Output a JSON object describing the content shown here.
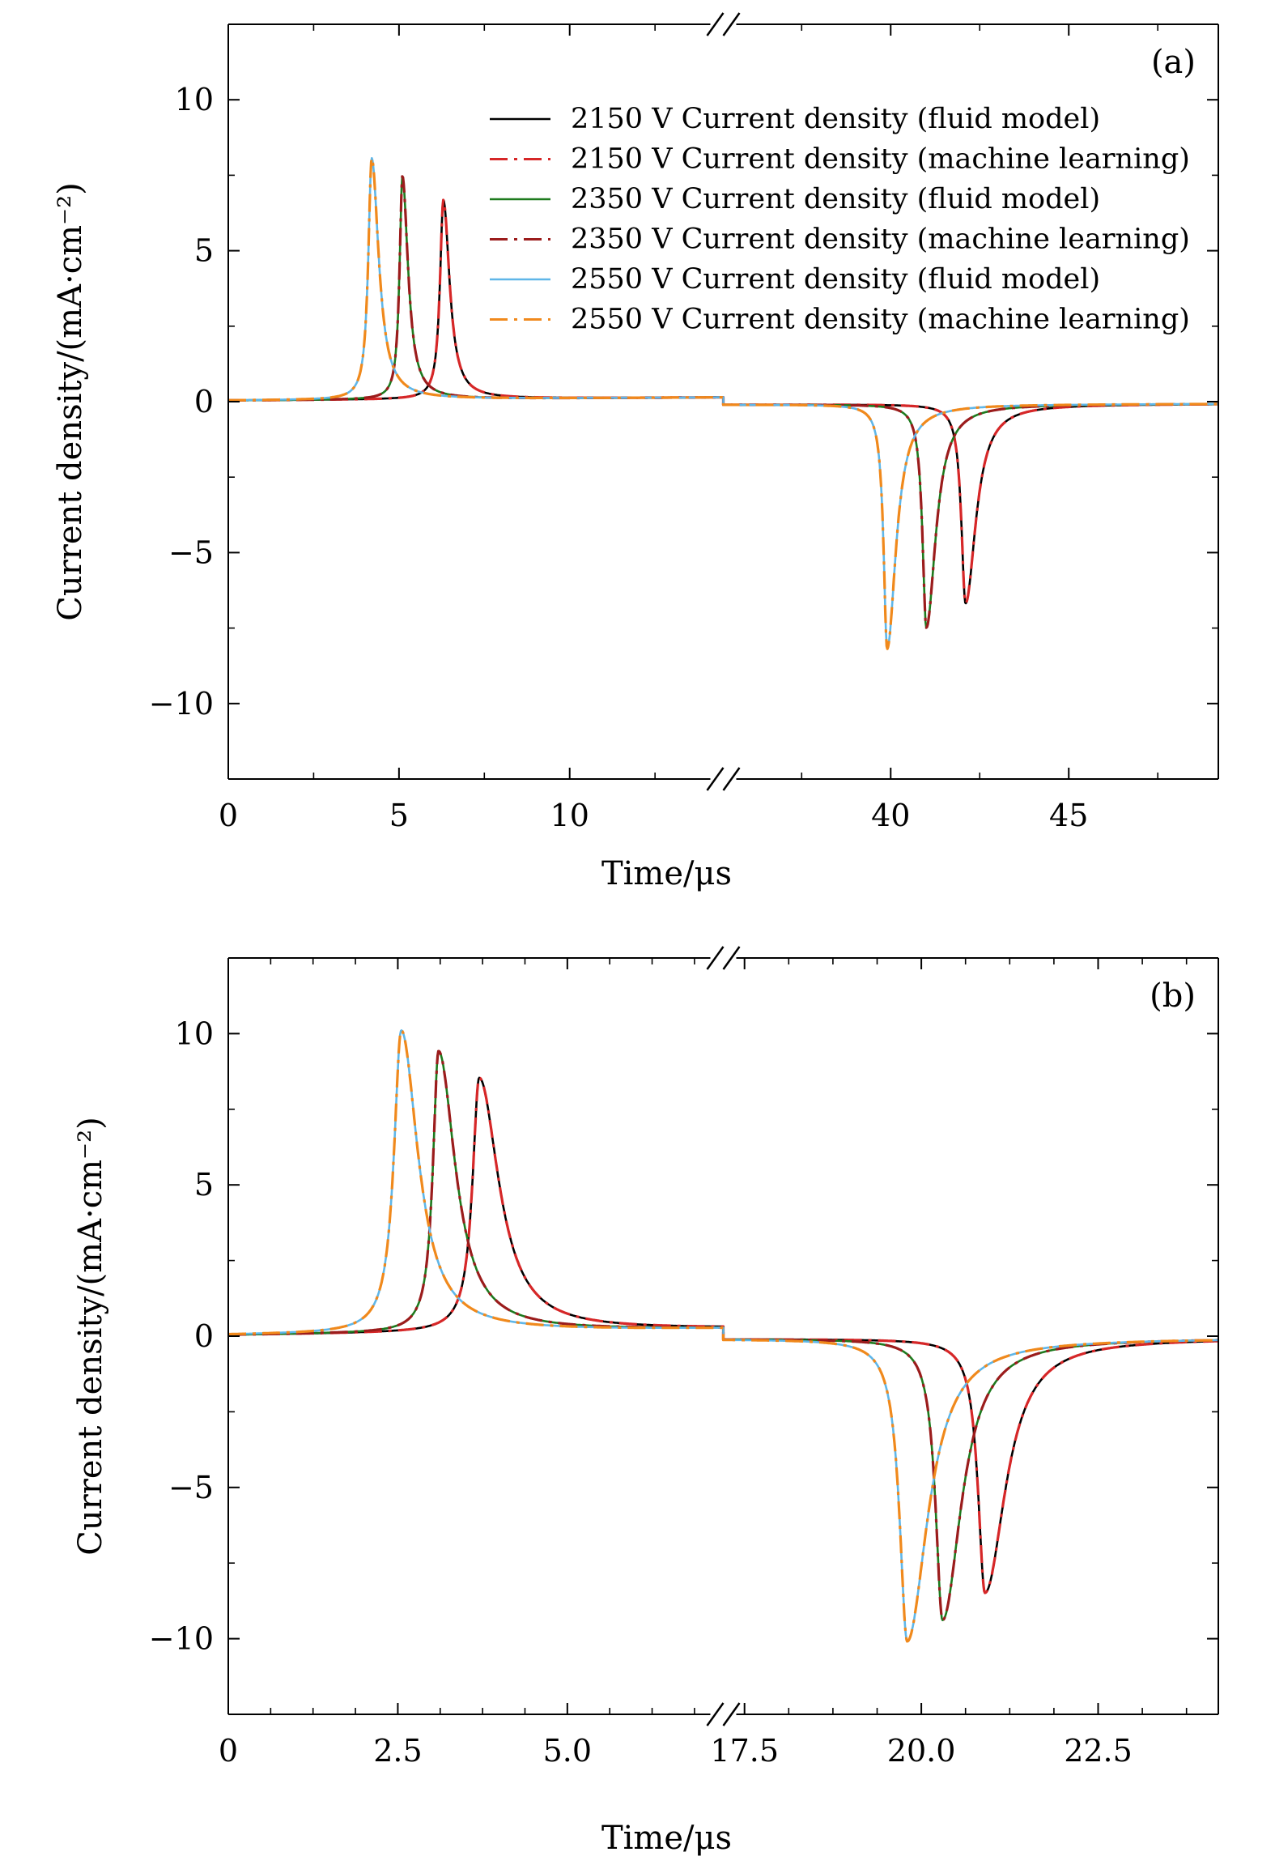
{
  "chart_data": [
    {
      "type": "line",
      "panel_label": "(a)",
      "xlabel": "Time/μs",
      "ylabel": "Current density/(mA·cm⁻²)",
      "ylim": [
        -12.5,
        12.5
      ],
      "yticks": [
        -10,
        -5,
        0,
        5,
        10
      ],
      "ytick_labels": [
        "−10",
        "−5",
        "0",
        "5",
        "10"
      ],
      "x_break": true,
      "x_segments": [
        {
          "xlim": [
            0,
            14.5
          ],
          "ticks": [
            0,
            5,
            10
          ],
          "tick_labels": [
            "0",
            "5",
            "10"
          ],
          "minor_step": 2.5
        },
        {
          "xlim": [
            35.3,
            49.2
          ],
          "ticks": [
            40,
            45
          ],
          "tick_labels": [
            "40",
            "45"
          ],
          "minor_step": 2.5
        }
      ],
      "legend_position": "top-right",
      "series": [
        {
          "name": "2150 V Current density (fluid model)",
          "color": "#000000",
          "dash": "solid",
          "voltage": 2150,
          "source": "fluid model"
        },
        {
          "name": "2150 V Current density (machine learning)",
          "color": "#d62728",
          "dash": "dashdot",
          "voltage": 2150,
          "source": "machine learning"
        },
        {
          "name": "2350 V Current density (fluid model)",
          "color": "#1e7a1e",
          "dash": "solid",
          "voltage": 2350,
          "source": "fluid model"
        },
        {
          "name": "2350 V Current density (machine learning)",
          "color": "#9b1c1c",
          "dash": "dashdot",
          "voltage": 2350,
          "source": "machine learning"
        },
        {
          "name": "2550 V Current density (fluid model)",
          "color": "#5fb6e8",
          "dash": "solid",
          "voltage": 2550,
          "source": "fluid model"
        },
        {
          "name": "2550 V Current density (machine learning)",
          "color": "#f0891c",
          "dash": "dashdot",
          "voltage": 2550,
          "source": "machine learning"
        }
      ],
      "pulses": [
        {
          "voltage": 2150,
          "positive": {
            "t": 6.3,
            "peak": 6.6,
            "rise": 0.12,
            "decay": 0.22
          },
          "negative": {
            "t": 42.1,
            "peak": -6.6,
            "rise": 0.14,
            "decay": 0.35
          }
        },
        {
          "voltage": 2350,
          "positive": {
            "t": 5.1,
            "peak": 7.4,
            "rise": 0.1,
            "decay": 0.2
          },
          "negative": {
            "t": 41.0,
            "peak": -7.4,
            "rise": 0.13,
            "decay": 0.32
          }
        },
        {
          "voltage": 2550,
          "positive": {
            "t": 4.2,
            "peak": 8.0,
            "rise": 0.12,
            "decay": 0.25
          },
          "negative": {
            "t": 39.9,
            "peak": -8.1,
            "rise": 0.12,
            "decay": 0.3
          }
        }
      ],
      "baseline": {
        "first_segment_end": 0.1,
        "second_segment": -0.1
      }
    },
    {
      "type": "line",
      "panel_label": "(b)",
      "xlabel": "Time/μs",
      "ylabel": "Current density/(mA·cm⁻²)",
      "ylim": [
        -12.5,
        12.5
      ],
      "yticks": [
        -10,
        -5,
        0,
        5,
        10
      ],
      "ytick_labels": [
        "−10",
        "−5",
        "0",
        "5",
        "10"
      ],
      "x_break": true,
      "x_segments": [
        {
          "xlim": [
            0,
            7.3
          ],
          "ticks": [
            0,
            2.5,
            5.0
          ],
          "tick_labels": [
            "0",
            "2.5",
            "5.0"
          ],
          "minor_step": 0.625
        },
        {
          "xlim": [
            17.2,
            24.2
          ],
          "ticks": [
            17.5,
            20.0,
            22.5
          ],
          "tick_labels": [
            "17.5",
            "20.0",
            "22.5"
          ],
          "minor_step": 0.625
        }
      ],
      "series": [
        {
          "name": "2150 V Current density (fluid model)",
          "color": "#000000",
          "dash": "solid"
        },
        {
          "name": "2150 V Current density (machine learning)",
          "color": "#d62728",
          "dash": "dashdot"
        },
        {
          "name": "2350 V Current density (fluid model)",
          "color": "#1e7a1e",
          "dash": "solid"
        },
        {
          "name": "2350 V Current density (machine learning)",
          "color": "#9b1c1c",
          "dash": "dashdot"
        },
        {
          "name": "2550 V Current density (fluid model)",
          "color": "#5fb6e8",
          "dash": "solid"
        },
        {
          "name": "2550 V Current density (machine learning)",
          "color": "#f0891c",
          "dash": "dashdot"
        }
      ],
      "pulses": [
        {
          "voltage": 2150,
          "positive": {
            "t": 3.7,
            "peak": 8.4,
            "rise": 0.12,
            "decay": 0.35
          },
          "negative": {
            "t": 20.9,
            "peak": -8.4,
            "rise": 0.12,
            "decay": 0.35
          }
        },
        {
          "voltage": 2350,
          "positive": {
            "t": 3.1,
            "peak": 9.3,
            "rise": 0.1,
            "decay": 0.3
          },
          "negative": {
            "t": 20.3,
            "peak": -9.3,
            "rise": 0.12,
            "decay": 0.32
          }
        },
        {
          "voltage": 2550,
          "positive": {
            "t": 2.55,
            "peak": 10.0,
            "rise": 0.13,
            "decay": 0.3
          },
          "negative": {
            "t": 19.8,
            "peak": -10.0,
            "rise": 0.13,
            "decay": 0.35
          }
        }
      ],
      "baseline": {
        "first_segment_end": 0.2,
        "second_segment": -0.1
      }
    }
  ]
}
